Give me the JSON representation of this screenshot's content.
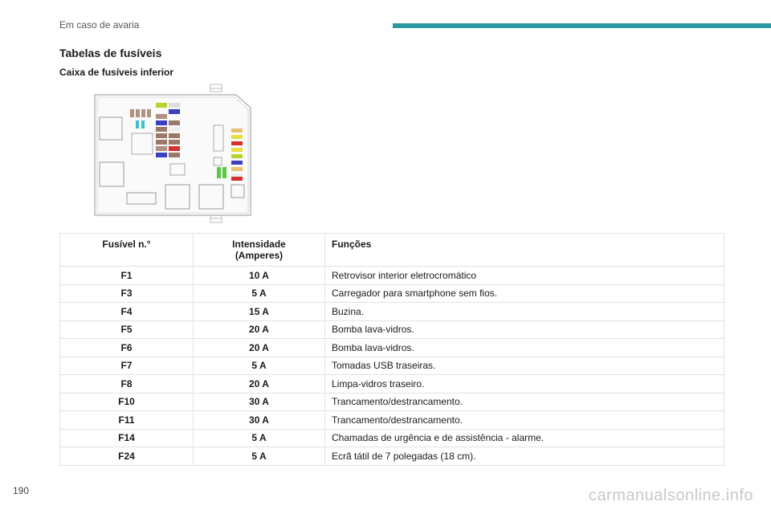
{
  "header": {
    "section": "Em caso de avaria",
    "accent_color": "#2a9aa0"
  },
  "section_title": "Tabelas de fusíveis",
  "subsection_title": "Caixa de fusíveis inferior",
  "table": {
    "headers": [
      "Fusível n.°",
      "Intensidade\n(Amperes)",
      "Funções"
    ],
    "rows": [
      {
        "fuse": "F1",
        "amps": "10 A",
        "function": "Retrovisor interior eletrocromático"
      },
      {
        "fuse": "F3",
        "amps": "5 A",
        "function": "Carregador para smartphone sem fios."
      },
      {
        "fuse": "F4",
        "amps": "15 A",
        "function": "Buzina."
      },
      {
        "fuse": "F5",
        "amps": "20 A",
        "function": "Bomba lava-vidros."
      },
      {
        "fuse": "F6",
        "amps": "20 A",
        "function": "Bomba lava-vidros."
      },
      {
        "fuse": "F7",
        "amps": "5 A",
        "function": "Tomadas USB traseiras."
      },
      {
        "fuse": "F8",
        "amps": "20 A",
        "function": "Limpa-vidros traseiro."
      },
      {
        "fuse": "F10",
        "amps": "30 A",
        "function": "Trancamento/destrancamento."
      },
      {
        "fuse": "F11",
        "amps": "30 A",
        "function": "Trancamento/destrancamento."
      },
      {
        "fuse": "F14",
        "amps": "5 A",
        "function": "Chamadas de urgência e de assistência - alarme."
      },
      {
        "fuse": "F24",
        "amps": "5 A",
        "function": "Ecrã tátil de 7 polegadas (18 cm)."
      }
    ]
  },
  "page_number": "190",
  "watermark": "carmanualsonline.info"
}
